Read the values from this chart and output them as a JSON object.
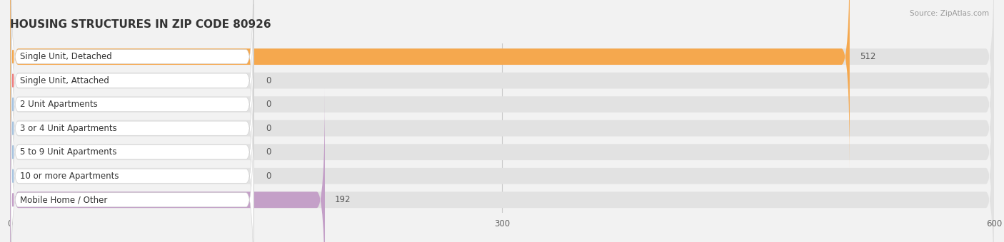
{
  "title": "HOUSING STRUCTURES IN ZIP CODE 80926",
  "source": "Source: ZipAtlas.com",
  "categories": [
    "Single Unit, Detached",
    "Single Unit, Attached",
    "2 Unit Apartments",
    "3 or 4 Unit Apartments",
    "5 to 9 Unit Apartments",
    "10 or more Apartments",
    "Mobile Home / Other"
  ],
  "values": [
    512,
    0,
    0,
    0,
    0,
    0,
    192
  ],
  "bar_colors": [
    "#F5A84E",
    "#F08080",
    "#A8C4E0",
    "#A8C4E0",
    "#A8C4E0",
    "#A8C4E0",
    "#C4A0C8"
  ],
  "xlim": [
    0,
    600
  ],
  "xticks": [
    0,
    300,
    600
  ],
  "background_color": "#f2f2f2",
  "bar_background": "#e2e2e2",
  "title_fontsize": 11,
  "label_fontsize": 8.5,
  "value_fontsize": 8.5
}
